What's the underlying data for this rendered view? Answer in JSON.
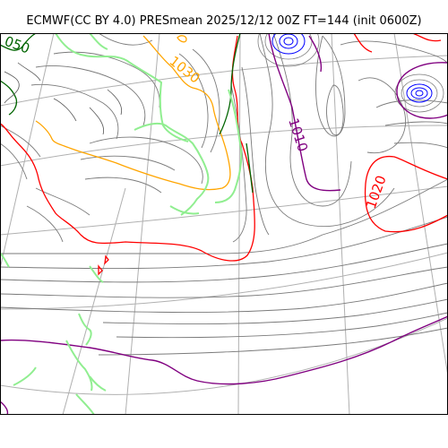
{
  "title": "ECMWF(CC BY 4.0) PRESmean 2025/12/12 00Z FT=144 (init 0600Z)",
  "colors": {
    "isobar": "#7a7a7a",
    "graticule": "#b0b0b0",
    "coastline": "#90ee90",
    "isobar_1000": "#006400",
    "isobar_1010": "#800080",
    "isobar_1020": "#ff0000",
    "isobar_1030": "#ffa500",
    "low_center": "#0000ff"
  },
  "labels": {
    "label_1050": "050",
    "label_1030": "1030",
    "label_1010": "1010",
    "label_1020": "1020"
  }
}
